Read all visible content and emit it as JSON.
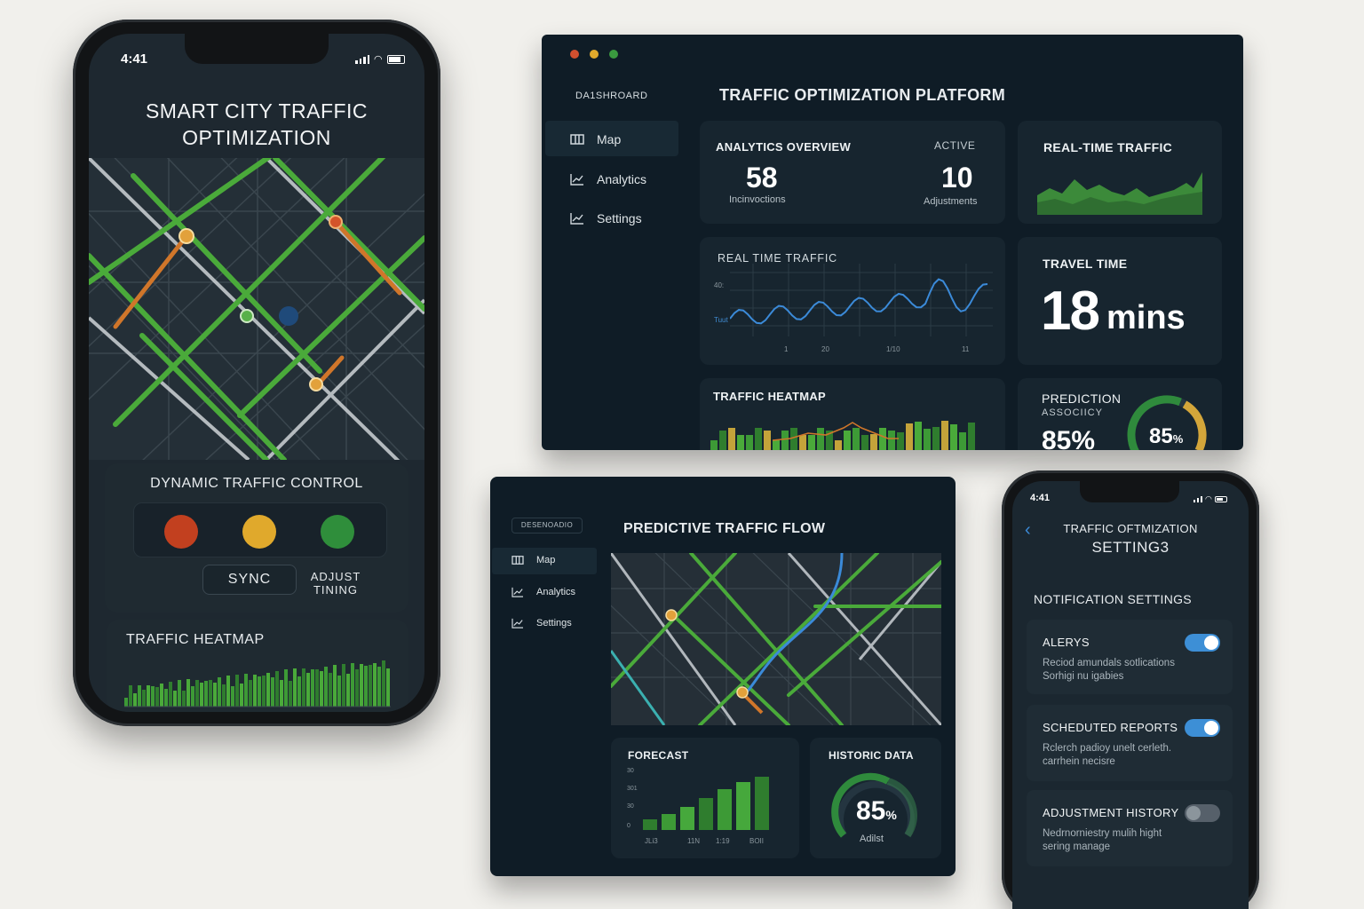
{
  "phone_main": {
    "status_time": "4:41",
    "title_line1": "SMART CITY TRAFFIC",
    "title_line2": "OPTIMIZATION",
    "control_title": "DYNAMIC TRAFFIC CONTROL",
    "sync_label": "SYNC",
    "adjust_line1": "ADJUST",
    "adjust_line2": "TINING",
    "heatmap_title": "TRAFFIC HEATMAP",
    "light_colors": [
      "#c2401f",
      "#e0a92c",
      "#2f8e3b"
    ]
  },
  "dashboard": {
    "sidebar_header": "DA1SHROARD",
    "nav": [
      {
        "label": "Map",
        "icon": "map-icon"
      },
      {
        "label": "Analytics",
        "icon": "chart-icon"
      },
      {
        "label": "Settings",
        "icon": "chart-icon"
      }
    ],
    "title": "TRAFFIC OPTIMIZATION PLATFORM",
    "analytics": {
      "title": "ANALYTICS OVERVIEW",
      "active_label": "ACTIVE",
      "value1": "58",
      "label1": "Incinvoctions",
      "value2": "10",
      "label2": "Adjustments"
    },
    "realtime_title": "REAL-TIME TRAFFIC",
    "realtime_chart": {
      "title": "REAL TIME TRAFFIC",
      "y_top": "40:",
      "y_mid": "Tuut",
      "x_labels": [
        "1",
        "20",
        "1/10",
        "11"
      ]
    },
    "travel": {
      "title": "TRAVEL TIME",
      "value": "18",
      "unit": "mins"
    },
    "heatmap_title": "TRAFFIC HEATMAP",
    "prediction": {
      "title": "PREDICTION",
      "subtitle": "ASSOCIICY",
      "value": "85%",
      "gauge_value": "85",
      "gauge_unit": "%"
    }
  },
  "tablet": {
    "sidebar_header": "DESENOADIO",
    "nav": [
      {
        "label": "Map",
        "icon": "map-icon"
      },
      {
        "label": "Analytics",
        "icon": "chart-icon"
      },
      {
        "label": "Settings",
        "icon": "chart-icon"
      }
    ],
    "title": "PREDICTIVE TRAFFIC FLOW",
    "forecast": {
      "title": "FORECAST",
      "y_labels": [
        "30",
        "301",
        "30",
        "0"
      ],
      "x_labels": [
        "JLi3",
        "11N",
        "1:19",
        "BOII"
      ]
    },
    "historic": {
      "title": "HISTORIC DATA",
      "value": "85",
      "unit": "%",
      "label": "Adilst"
    }
  },
  "phone_settings": {
    "status_time": "4:41",
    "title_line1": "TRAFFIC OFTMIZATION",
    "title_line2": "SETTING3",
    "section": "NOTIFICATION SETTINGS",
    "items": [
      {
        "title": "ALERYS",
        "desc1": "Reciod amundals sotlications",
        "desc2": "Sorhigi nu igabies",
        "on": true
      },
      {
        "title": "SCHEDUTED REPORTS",
        "desc1": "Rclerch padioy unelt cerleth.",
        "desc2": "carrhein necisre",
        "on": true
      },
      {
        "title": "ADJUSTMENT HISTORY",
        "desc1": "Nedrnorniestry mulih hight",
        "desc2": "sering manage",
        "on": false
      }
    ]
  },
  "colors": {
    "accent_green": "#3f9b38",
    "accent_blue": "#3b8ad8",
    "toggle_on": "#3d8fd6",
    "orange": "#d0762a"
  }
}
